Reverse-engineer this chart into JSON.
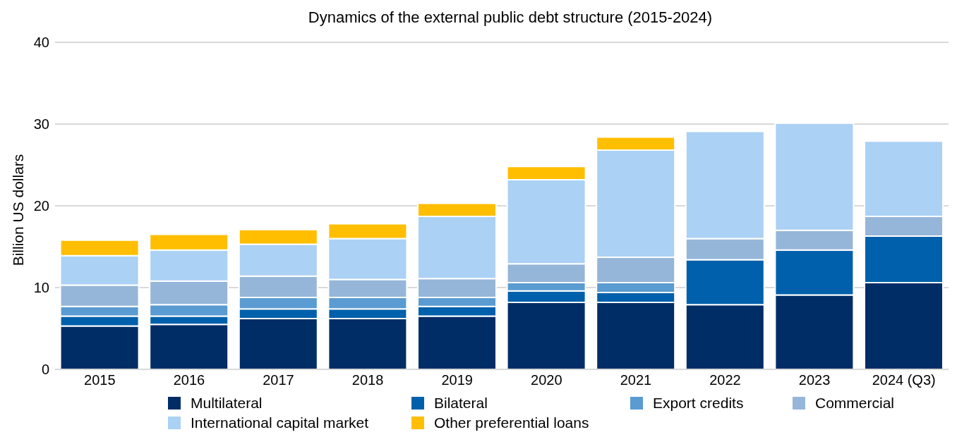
{
  "chart_data": {
    "type": "bar",
    "title": "Dynamics of the external public debt structure (2015-2024)",
    "ylabel": "Billion US dollars",
    "categories": [
      "2015",
      "2016",
      "2017",
      "2018",
      "2019",
      "2020",
      "2021",
      "2022",
      "2023",
      "2024 (Q3)"
    ],
    "stacked": true,
    "ylim": [
      0,
      40
    ],
    "yticks": [
      0,
      10,
      20,
      30,
      40
    ],
    "grid": "y",
    "legend": "bottom",
    "series": [
      {
        "name": "Multilateral",
        "color": "#002d66",
        "values": [
          5.3,
          5.5,
          6.2,
          6.2,
          6.5,
          8.2,
          8.2,
          7.9,
          9.1,
          10.6
        ]
      },
      {
        "name": "Bilateral",
        "color": "#0060ab",
        "values": [
          1.2,
          1.0,
          1.2,
          1.2,
          1.2,
          1.4,
          1.2,
          5.5,
          5.5,
          5.7
        ]
      },
      {
        "name": "Export credits",
        "color": "#5a9bd2",
        "values": [
          1.2,
          1.4,
          1.4,
          1.4,
          1.1,
          1.0,
          1.2,
          null,
          null,
          null
        ]
      },
      {
        "name": "Commercial",
        "color": "#95b6d9",
        "values": [
          2.6,
          2.9,
          2.6,
          2.2,
          2.3,
          2.3,
          3.1,
          2.6,
          2.4,
          2.4
        ]
      },
      {
        "name": "International capital market",
        "color": "#abd1f4",
        "values": [
          3.6,
          3.8,
          3.9,
          5.0,
          7.6,
          10.3,
          13.1,
          13.1,
          13.1,
          9.2
        ]
      },
      {
        "name": "Other preferential loans",
        "color": "#ffbe00",
        "values": [
          1.9,
          1.9,
          1.8,
          1.8,
          1.6,
          1.6,
          1.6,
          null,
          null,
          null
        ]
      }
    ]
  }
}
